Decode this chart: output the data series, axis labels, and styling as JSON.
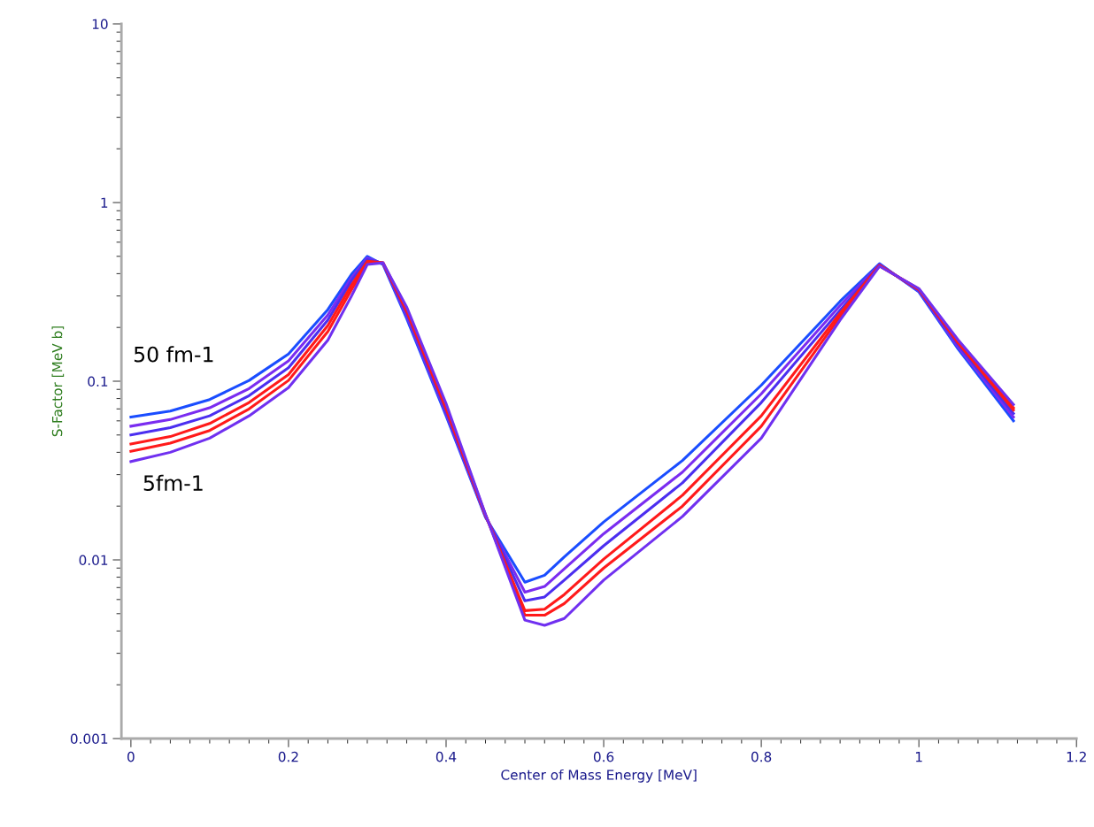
{
  "chart_data": {
    "type": "line",
    "xlabel": "Center of Mass Energy [MeV]",
    "ylabel": "S-Factor [MeV b]",
    "log": "y",
    "grid": false,
    "legend": false,
    "marker": "none",
    "line_style": "solid",
    "xlim": [
      -0.012,
      1.2
    ],
    "xticks": [
      0,
      0.2,
      0.4,
      0.6,
      0.8,
      1,
      1.2
    ],
    "ylim": [
      0.001,
      10
    ],
    "yticks": [
      0.001,
      0.01,
      0.1,
      1,
      10
    ],
    "x": [
      0,
      0.05,
      0.1,
      0.15,
      0.2,
      0.25,
      0.28,
      0.3,
      0.32,
      0.35,
      0.4,
      0.45,
      0.5,
      0.525,
      0.55,
      0.6,
      0.7,
      0.8,
      0.9,
      0.95,
      1.0,
      1.05,
      1.12
    ],
    "series": [
      {
        "color": "#1a4dff",
        "values": [
          0.063,
          0.068,
          0.079,
          0.101,
          0.142,
          0.252,
          0.397,
          0.5,
          0.45,
          0.224,
          0.064,
          0.0173,
          0.0075,
          0.0082,
          0.0104,
          0.0163,
          0.036,
          0.095,
          0.28,
          0.455,
          0.316,
          0.151,
          0.06
        ]
      },
      {
        "color": "#7a2cf0",
        "values": [
          0.056,
          0.061,
          0.071,
          0.091,
          0.13,
          0.235,
          0.38,
          0.49,
          0.455,
          0.232,
          0.066,
          0.0175,
          0.0066,
          0.0071,
          0.0089,
          0.014,
          0.031,
          0.085,
          0.265,
          0.45,
          0.32,
          0.155,
          0.063
        ]
      },
      {
        "color": "#4b2ef0",
        "values": [
          0.05,
          0.055,
          0.064,
          0.083,
          0.119,
          0.22,
          0.365,
          0.48,
          0.458,
          0.24,
          0.068,
          0.0177,
          0.0059,
          0.0062,
          0.0077,
          0.012,
          0.027,
          0.076,
          0.25,
          0.447,
          0.323,
          0.16,
          0.066
        ]
      },
      {
        "color": "#ff1a1a",
        "values": [
          0.0445,
          0.049,
          0.058,
          0.076,
          0.109,
          0.205,
          0.345,
          0.47,
          0.46,
          0.246,
          0.07,
          0.0178,
          0.0052,
          0.0053,
          0.0064,
          0.0101,
          0.023,
          0.064,
          0.24,
          0.445,
          0.326,
          0.163,
          0.069
        ]
      },
      {
        "color": "#ff1a1a",
        "values": [
          0.0405,
          0.045,
          0.053,
          0.07,
          0.101,
          0.19,
          0.325,
          0.46,
          0.46,
          0.252,
          0.072,
          0.0179,
          0.0049,
          0.0049,
          0.0057,
          0.009,
          0.02,
          0.056,
          0.23,
          0.442,
          0.328,
          0.166,
          0.071
        ]
      },
      {
        "color": "#7030f0",
        "values": [
          0.0355,
          0.04,
          0.048,
          0.064,
          0.092,
          0.17,
          0.3,
          0.45,
          0.46,
          0.26,
          0.075,
          0.018,
          0.0046,
          0.0043,
          0.0047,
          0.0077,
          0.0175,
          0.048,
          0.22,
          0.44,
          0.33,
          0.17,
          0.074
        ]
      }
    ],
    "annotations": [
      "50 fm-1",
      "5fm-1"
    ]
  }
}
